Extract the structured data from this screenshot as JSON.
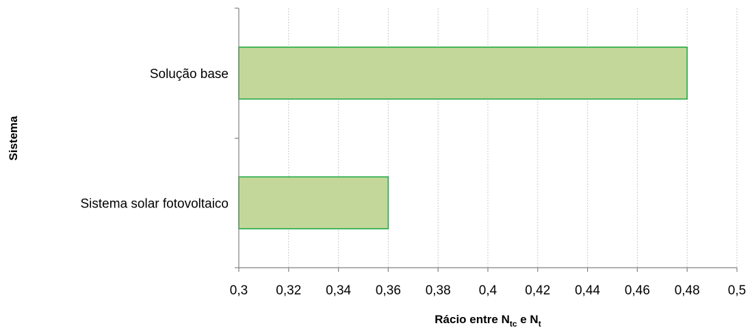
{
  "chart_data": {
    "type": "bar",
    "orientation": "horizontal",
    "categories": [
      "Solução base",
      "Sistema solar fotovoltaico"
    ],
    "values": [
      0.48,
      0.36
    ],
    "xlim": [
      0.3,
      0.5
    ],
    "xticks": [
      "0,3",
      "0,32",
      "0,34",
      "0,36",
      "0,38",
      "0,4",
      "0,42",
      "0,44",
      "0,46",
      "0,48",
      "0,5"
    ],
    "xlabel": {
      "main": "Rácio entre N",
      "sub1": "tc",
      "mid": " e N",
      "sub2": "t"
    },
    "ylabel": "Sistema",
    "grid": true,
    "bar_fill": "#c4d79b",
    "bar_stroke": "#22aa44"
  }
}
